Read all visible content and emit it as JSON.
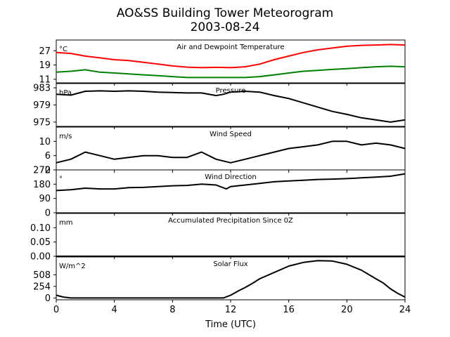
{
  "chart_data": {
    "type": "line",
    "title": "AO&SS Building Tower Meteorogram",
    "subtitle": "2003-08-24",
    "xlabel": "Time (UTC)",
    "xlim": [
      0,
      24
    ],
    "xticks": [
      "0",
      "4",
      "8",
      "12",
      "16",
      "20",
      "24"
    ],
    "panels": [
      {
        "title": "Air and Dewpoint Temperature",
        "unit": "°C",
        "ylim": [
          9,
          33
        ],
        "yticks": [
          11,
          19,
          27
        ],
        "series": [
          {
            "color": "#ff0000",
            "x": [
              0,
              1,
              2,
              3,
              4,
              5,
              6,
              7,
              8,
              9,
              10,
              11,
              12,
              13,
              14,
              15,
              16,
              17,
              18,
              19,
              20,
              21,
              22,
              23,
              24
            ],
            "values": [
              26,
              25.5,
              24,
              23,
              22,
              21.5,
              20.5,
              19.5,
              18.5,
              17.8,
              17.5,
              17.7,
              17.5,
              18,
              19.5,
              22,
              24,
              26,
              27.5,
              28.5,
              29.5,
              30,
              30.2,
              30.5,
              30.2
            ]
          },
          {
            "color": "#008000",
            "x": [
              0,
              1,
              2,
              3,
              4,
              5,
              6,
              7,
              8,
              9,
              10,
              11,
              12,
              13,
              14,
              15,
              16,
              17,
              18,
              19,
              20,
              21,
              22,
              23,
              24
            ],
            "values": [
              15,
              15.5,
              16.3,
              15,
              14.5,
              14,
              13.5,
              13,
              12.5,
              12,
              12,
              12,
              12,
              12,
              12.5,
              13.5,
              14.5,
              15.5,
              16,
              16.5,
              17,
              17.5,
              18,
              18.3,
              18
            ]
          }
        ]
      },
      {
        "title": "Pressure",
        "unit": "hPa",
        "ylim": [
          974,
          984
        ],
        "yticks": [
          975,
          979,
          983
        ],
        "series": [
          {
            "color": "#000000",
            "x": [
              0,
              1,
              2,
              3,
              4,
              5,
              6,
              7,
              8,
              9,
              10,
              11,
              11.5,
              12,
              13,
              14,
              15,
              16,
              17,
              18,
              19,
              20,
              21,
              22,
              23,
              24
            ],
            "values": [
              981.5,
              981.3,
              982.2,
              982.3,
              982.2,
              982.3,
              982.2,
              982,
              981.9,
              981.8,
              981.8,
              981.2,
              981.5,
              982,
              982.2,
              982,
              981.2,
              980.5,
              979.5,
              978.5,
              977.5,
              976.8,
              976,
              975.5,
              975,
              975.5
            ]
          }
        ]
      },
      {
        "title": "Wind Speed",
        "unit": "m/s",
        "ylim": [
          2,
          14
        ],
        "yticks": [
          2,
          6,
          10
        ],
        "series": [
          {
            "color": "#000000",
            "x": [
              0,
              1,
              2,
              3,
              4,
              5,
              6,
              7,
              8,
              9,
              10,
              11,
              12,
              13,
              14,
              15,
              16,
              17,
              18,
              19,
              20,
              21,
              22,
              23,
              24
            ],
            "values": [
              4,
              5,
              7,
              6,
              5,
              5.5,
              6,
              6,
              5.5,
              5.5,
              7,
              5,
              4,
              5,
              6,
              7,
              8,
              8.5,
              9,
              10,
              10,
              9,
              9.5,
              9,
              8
            ]
          }
        ]
      },
      {
        "title": "Wind Direction",
        "unit": "°",
        "ylim": [
          0,
          270
        ],
        "yticks": [
          0,
          90,
          180,
          270
        ],
        "series": [
          {
            "color": "#000000",
            "x": [
              0,
              1,
              2,
              3,
              4,
              5,
              6,
              7,
              8,
              9,
              10,
              11,
              11.7,
              12,
              13,
              14,
              15,
              16,
              17,
              18,
              19,
              20,
              21,
              22,
              23,
              24
            ],
            "values": [
              140,
              145,
              155,
              150,
              150,
              158,
              160,
              165,
              170,
              172,
              180,
              175,
              150,
              165,
              175,
              185,
              195,
              200,
              205,
              210,
              212,
              215,
              220,
              225,
              230,
              245
            ]
          }
        ]
      },
      {
        "title": "Accumulated Precipitation Since 0Z",
        "unit": "mm",
        "ylim": [
          0,
          0.15
        ],
        "yticks": [
          0.0,
          0.05,
          0.1
        ],
        "ytick_labels": [
          "0.00",
          "0.05",
          "0.10"
        ],
        "series": [
          {
            "color": "#000000",
            "x": [
              0,
              24
            ],
            "values": [
              0,
              0
            ]
          }
        ]
      },
      {
        "title": "Solar Flux",
        "unit": "W/m^2",
        "ylim": [
          -40,
          900
        ],
        "yticks": [
          0,
          254,
          508
        ],
        "series": [
          {
            "color": "#000000",
            "x": [
              0,
              0.5,
              1,
              2,
              4,
              6,
              8,
              10,
              11.5,
              12,
              12.5,
              13,
              13.5,
              14,
              15,
              16,
              17,
              18,
              19,
              20,
              21,
              22,
              22.5,
              23,
              23.5,
              24
            ],
            "values": [
              60,
              20,
              0,
              0,
              0,
              0,
              0,
              0,
              0,
              60,
              150,
              230,
              320,
              420,
              560,
              700,
              780,
              820,
              810,
              740,
              610,
              420,
              330,
              200,
              100,
              20
            ]
          }
        ]
      }
    ]
  }
}
